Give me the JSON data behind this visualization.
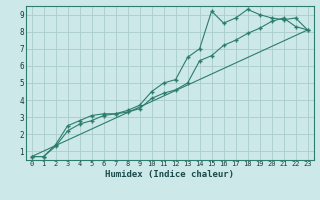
{
  "xlabel": "Humidex (Indice chaleur)",
  "bg_color": "#cce8e8",
  "grid_color": "#aacccc",
  "line_color": "#2d7d6e",
  "xlim": [
    -0.5,
    23.5
  ],
  "ylim": [
    0.5,
    9.5
  ],
  "xticks": [
    0,
    1,
    2,
    3,
    4,
    5,
    6,
    7,
    8,
    9,
    10,
    11,
    12,
    13,
    14,
    15,
    16,
    17,
    18,
    19,
    20,
    21,
    22,
    23
  ],
  "yticks": [
    1,
    2,
    3,
    4,
    5,
    6,
    7,
    8,
    9
  ],
  "line1_x": [
    0,
    1,
    2,
    3,
    4,
    5,
    6,
    7,
    8,
    9,
    10,
    11,
    12,
    13,
    14,
    15,
    16,
    17,
    18,
    19,
    20,
    21,
    22,
    23
  ],
  "line1_y": [
    0.7,
    0.7,
    1.3,
    2.2,
    2.6,
    2.8,
    3.1,
    3.2,
    3.3,
    3.5,
    4.1,
    4.4,
    4.6,
    5.0,
    6.3,
    6.6,
    7.2,
    7.5,
    7.9,
    8.2,
    8.6,
    8.8,
    8.3,
    8.1
  ],
  "line2_x": [
    0,
    1,
    2,
    3,
    4,
    5,
    6,
    7,
    8,
    9,
    10,
    11,
    12,
    13,
    14,
    15,
    16,
    17,
    18,
    19,
    20,
    21,
    22,
    23
  ],
  "line2_y": [
    0.7,
    0.7,
    1.4,
    2.5,
    2.8,
    3.1,
    3.2,
    3.2,
    3.4,
    3.7,
    4.5,
    5.0,
    5.2,
    6.5,
    7.0,
    9.2,
    8.5,
    8.8,
    9.3,
    9.0,
    8.8,
    8.7,
    8.8,
    8.1
  ],
  "line3_x": [
    0,
    23
  ],
  "line3_y": [
    0.7,
    8.1
  ]
}
